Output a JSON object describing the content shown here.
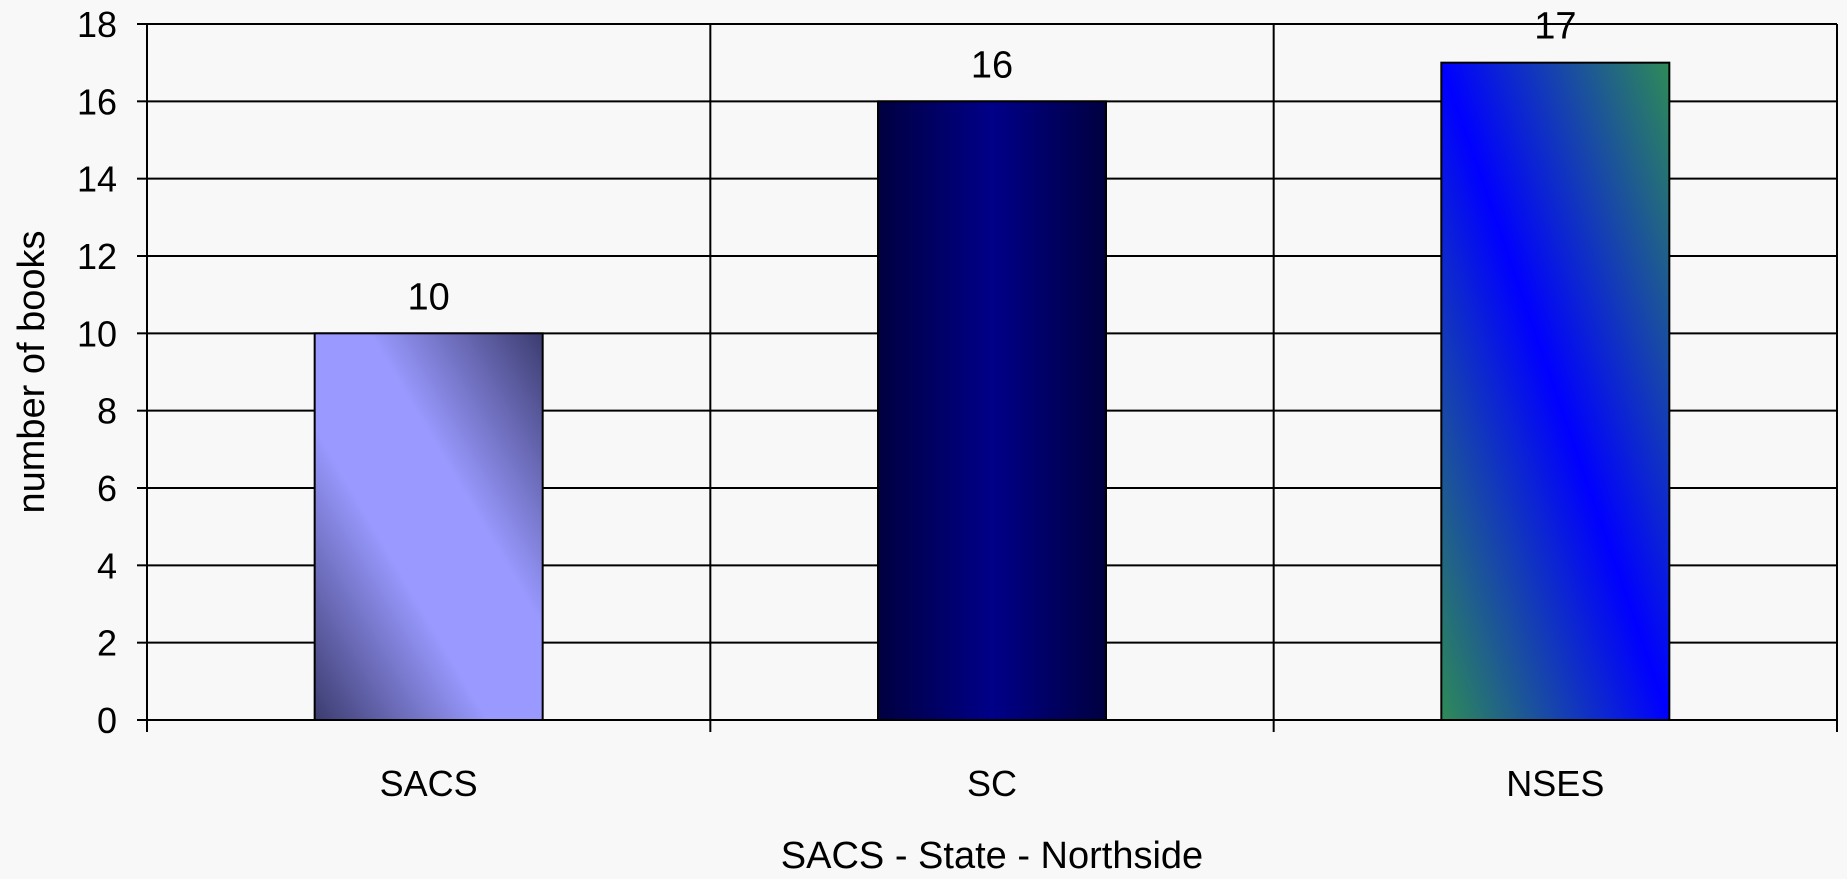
{
  "chart_data": {
    "type": "bar",
    "categories": [
      "SACS",
      "SC",
      "NSES"
    ],
    "values": [
      10,
      16,
      17
    ],
    "data_labels": [
      "10",
      "16",
      "17"
    ],
    "title": "",
    "xlabel": "SACS - State - Northside",
    "ylabel": "number of books",
    "ylim": [
      0,
      18
    ],
    "y_ticks": [
      0,
      2,
      4,
      6,
      8,
      10,
      12,
      14,
      16,
      18
    ],
    "grid": {
      "horizontal": true,
      "vertical": true
    },
    "legend": "none",
    "colors": {
      "background": "#f8f8f8",
      "gridline": "#000000",
      "bar_outline": "#000000",
      "SACS": [
        "#9999ff",
        "#3c3c70"
      ],
      "SC": [
        "#000040",
        "#000088"
      ],
      "NSES": [
        "#0000ff",
        "#2e8b57"
      ]
    }
  }
}
